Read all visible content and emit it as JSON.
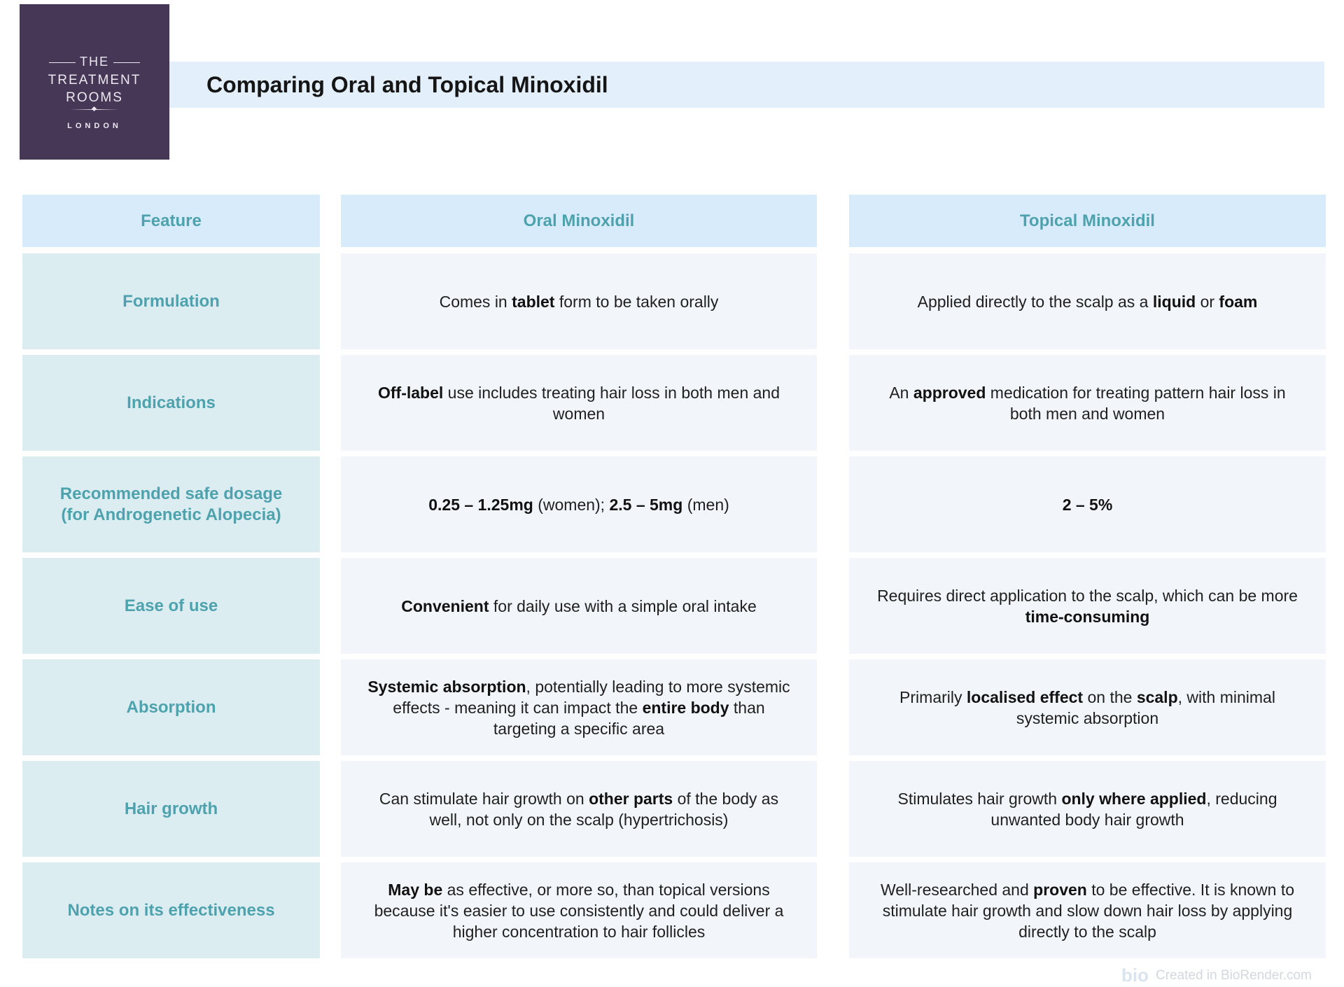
{
  "logo": {
    "line1": "THE",
    "line2": "TREATMENT",
    "line3": "ROOMS",
    "line4": "LONDON"
  },
  "title": "Comparing Oral and Topical Minoxidil",
  "colors": {
    "logo_bg": "#463757",
    "title_bg": "#e3f0fb",
    "header_bg": "#d8ebfa",
    "feature_bg": "#dcedf2",
    "cell_bg": "#f2f6fa",
    "accent_text": "#4da2ad"
  },
  "table": {
    "headers": [
      "Feature",
      "Oral Minoxidil",
      "Topical Minoxidil"
    ],
    "rows": [
      {
        "feature": "Formulation",
        "oral": [
          {
            "t": "Comes in "
          },
          {
            "t": "tablet",
            "b": true
          },
          {
            "t": " form to be taken orally"
          }
        ],
        "topical": [
          {
            "t": "Applied directly to the scalp as a "
          },
          {
            "t": "liquid",
            "b": true
          },
          {
            "t": " or "
          },
          {
            "t": "foam",
            "b": true
          }
        ]
      },
      {
        "feature": "Indications",
        "oral": [
          {
            "t": "Off-label",
            "b": true
          },
          {
            "t": " use includes treating hair loss in both men and women"
          }
        ],
        "topical": [
          {
            "t": "An "
          },
          {
            "t": "approved",
            "b": true
          },
          {
            "t": " medication for treating pattern hair loss in both men and women"
          }
        ]
      },
      {
        "feature": "Recommended safe dosage (for Androgenetic Alopecia)",
        "oral": [
          {
            "t": "0.25 – 1.25mg",
            "b": true
          },
          {
            "t": " (women); "
          },
          {
            "t": "2.5 – 5mg",
            "b": true
          },
          {
            "t": " (men)"
          }
        ],
        "topical": [
          {
            "t": "2 – 5%",
            "b": true
          }
        ]
      },
      {
        "feature": "Ease of use",
        "oral": [
          {
            "t": "Convenient",
            "b": true
          },
          {
            "t": " for daily use with a simple oral intake"
          }
        ],
        "topical": [
          {
            "t": "Requires direct application to the scalp, which can be more "
          },
          {
            "t": "time-consuming",
            "b": true
          }
        ]
      },
      {
        "feature": "Absorption",
        "oral": [
          {
            "t": "Systemic absorption",
            "b": true
          },
          {
            "t": ", potentially leading to more systemic effects - meaning it can impact the "
          },
          {
            "t": "entire body",
            "b": true
          },
          {
            "t": " than targeting a specific area"
          }
        ],
        "topical": [
          {
            "t": "Primarily "
          },
          {
            "t": "localised effect",
            "b": true
          },
          {
            "t": " on the "
          },
          {
            "t": "scalp",
            "b": true
          },
          {
            "t": ", with minimal systemic absorption"
          }
        ]
      },
      {
        "feature": "Hair growth",
        "oral": [
          {
            "t": "Can stimulate hair growth on "
          },
          {
            "t": "other parts",
            "b": true
          },
          {
            "t": " of the body as well, not only on the scalp (hypertrichosis)"
          }
        ],
        "topical": [
          {
            "t": "Stimulates hair growth "
          },
          {
            "t": "only where applied",
            "b": true
          },
          {
            "t": ", reducing unwanted body hair growth"
          }
        ]
      },
      {
        "feature": "Notes on its effectiveness",
        "oral": [
          {
            "t": "May be",
            "b": true
          },
          {
            "t": " as effective, or more so, than topical versions because it's easier to use consistently and could deliver a higher concentration to hair follicles"
          }
        ],
        "topical": [
          {
            "t": "Well-researched and "
          },
          {
            "t": "proven",
            "b": true
          },
          {
            "t": " to be effective. It is known to stimulate hair growth and slow down hair loss by applying directly to the scalp"
          }
        ]
      }
    ]
  },
  "watermark": {
    "logo": "bio",
    "text": "Created in BioRender.com"
  }
}
